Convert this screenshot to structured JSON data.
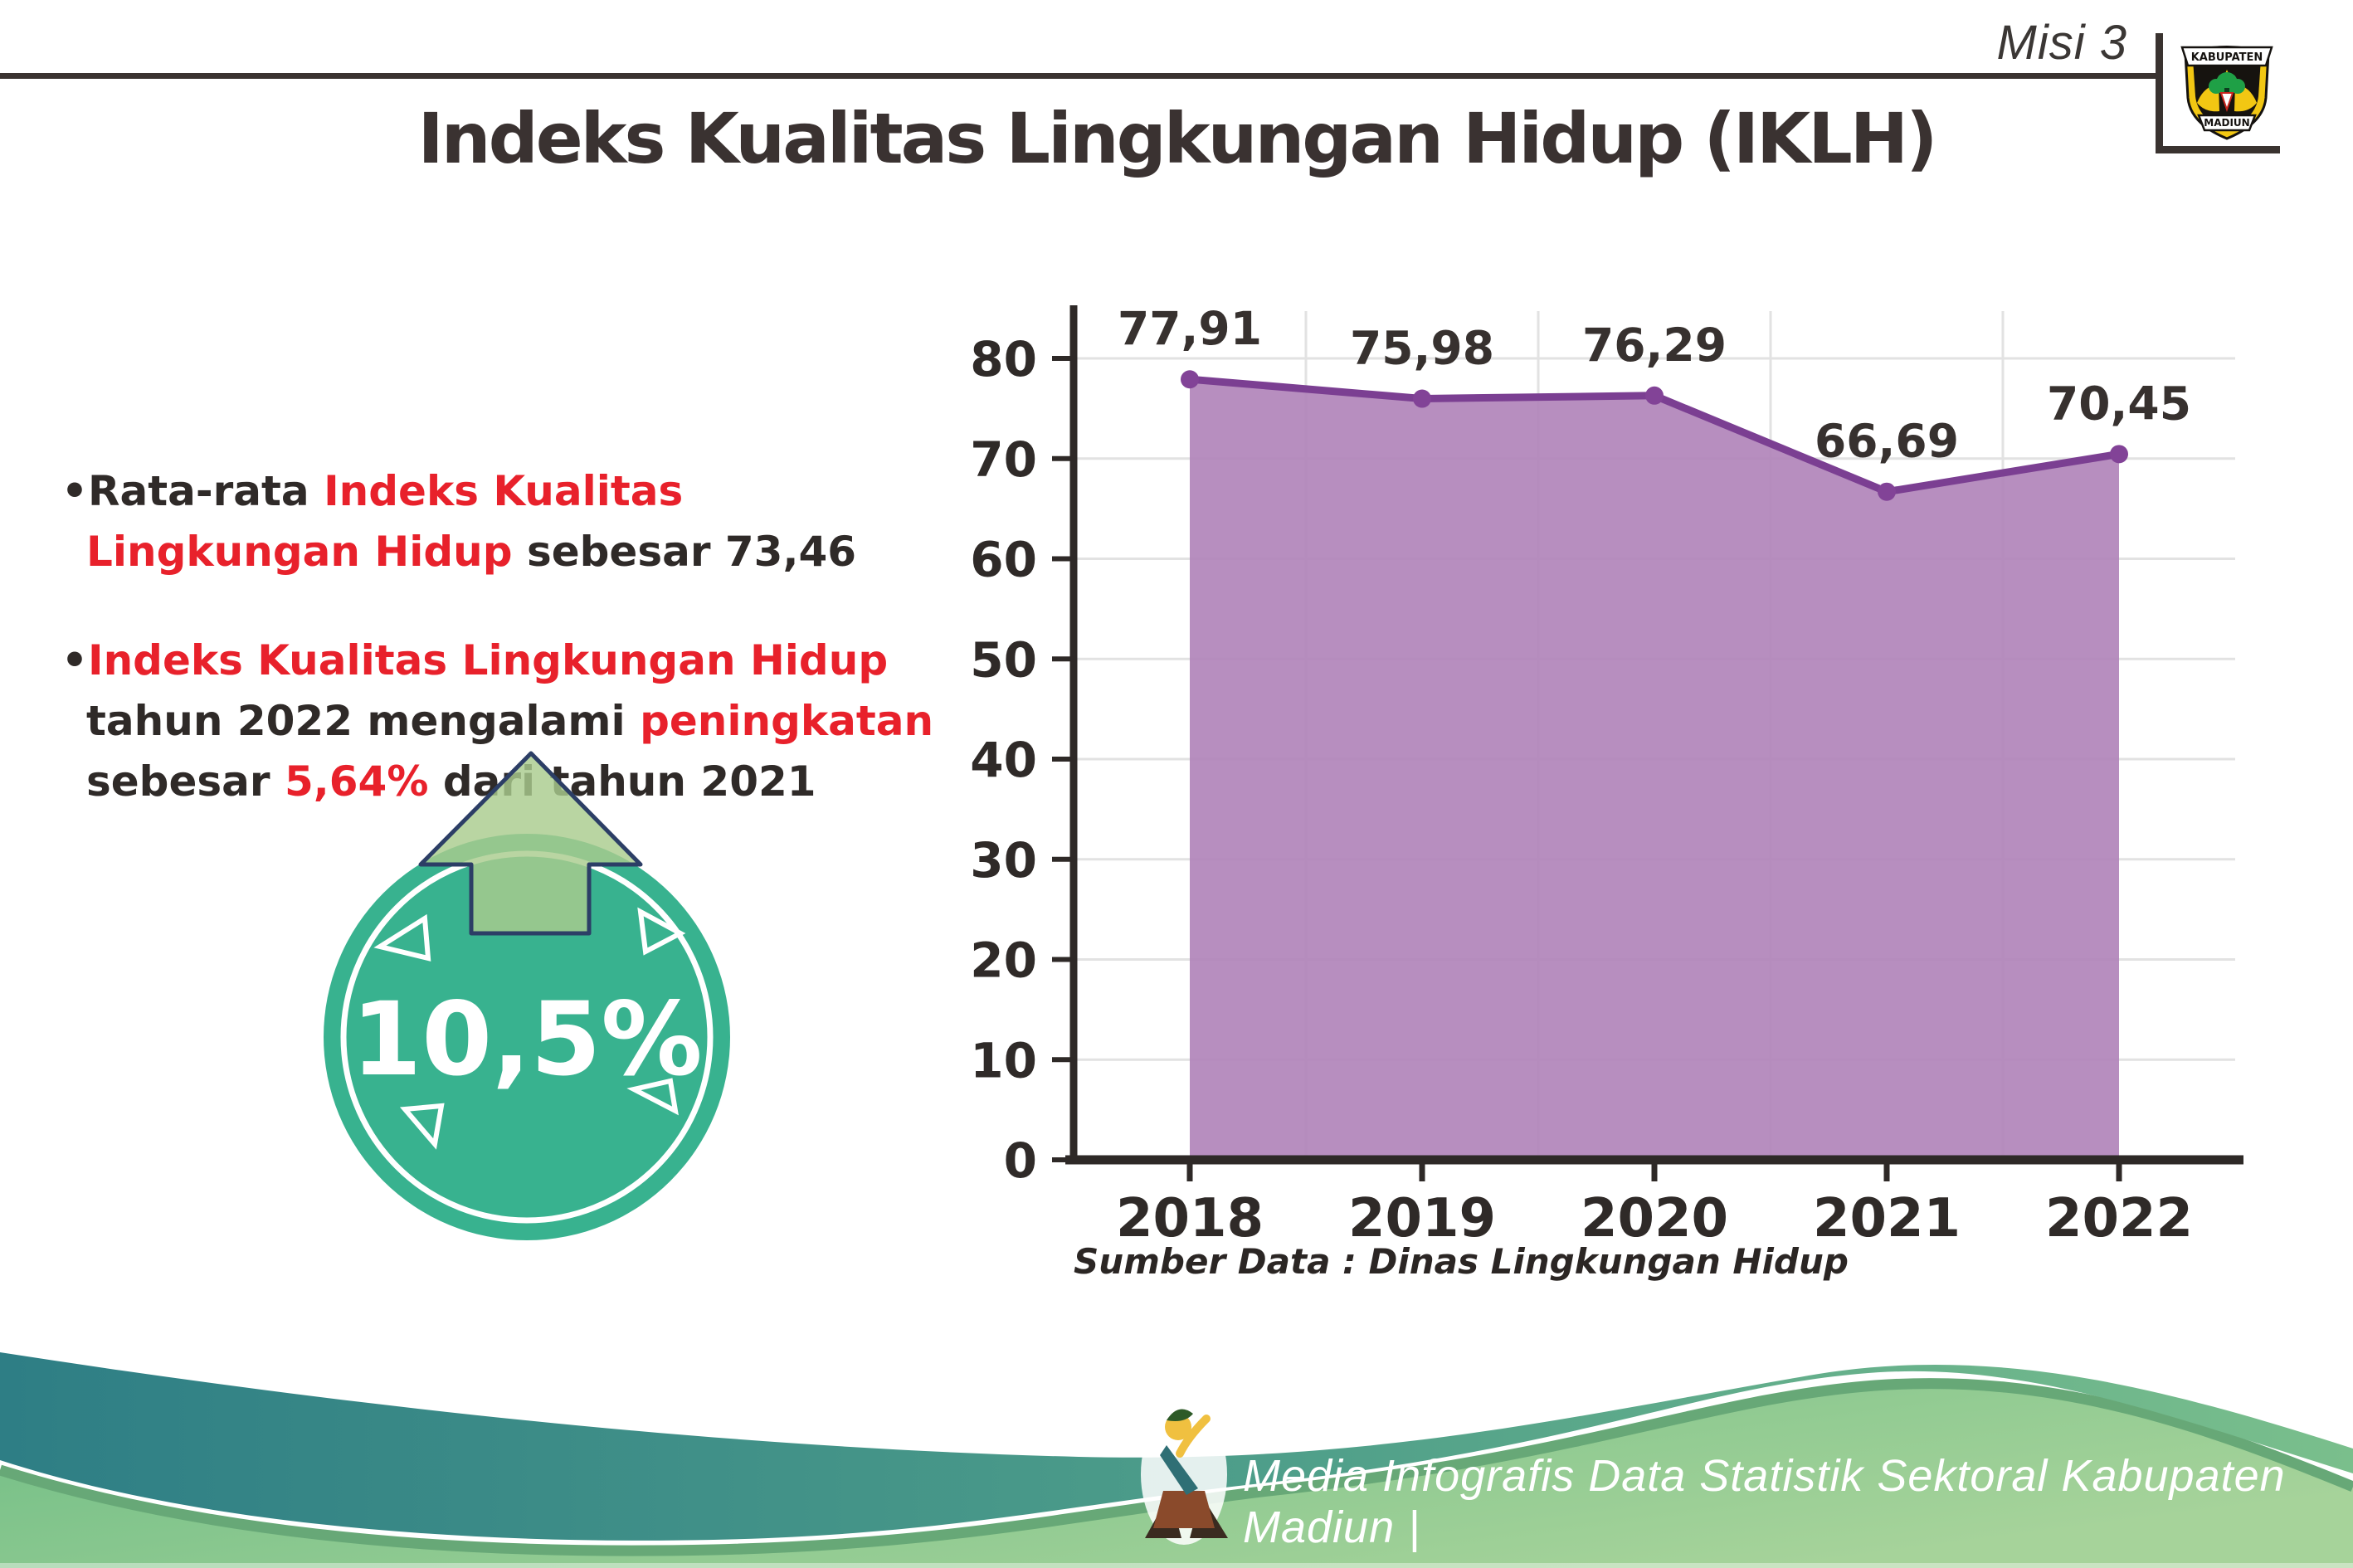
{
  "header": {
    "misi": "Misi 3",
    "title": "Indeks Kualitas Lingkungan Hidup (IKLH)",
    "logo": {
      "top": "KABUPATEN",
      "bottom": "MADIUN"
    }
  },
  "insights": {
    "bullet_char": "•",
    "bullet1": {
      "s1": "Rata-rata ",
      "s2": "Indeks Kualitas Lingkungan Hidup",
      "s3": " sebesar 73,46"
    },
    "bullet2": {
      "s1": "Indeks Kualitas Lingkungan Hidup",
      "s2": " tahun 2022 mengalami ",
      "s3": "peningkatan",
      "s4": " sebesar ",
      "s5": "5,64%",
      "s6": " dari tahun 2021"
    }
  },
  "badge": {
    "value": "10,5%"
  },
  "chart_data": {
    "type": "area",
    "title": "Indeks Kualitas Lingkungan Hidup (IKLH)",
    "categories": [
      "2018",
      "2019",
      "2020",
      "2021",
      "2022"
    ],
    "values": [
      77.91,
      75.98,
      76.29,
      66.69,
      70.45
    ],
    "point_labels": [
      "77,91",
      "75,98",
      "76,29",
      "66,69",
      "70,45"
    ],
    "xlabel": "",
    "ylabel": "",
    "ylim": [
      0,
      80
    ],
    "ytick_step": 10,
    "grid": true,
    "legend": false,
    "source": "Sumber Data : Dinas Lingkungan Hidup",
    "colors": {
      "area": "#b285ba",
      "line": "#7b3f92",
      "point": "#824397",
      "grid": "#e2e2e2",
      "axis": "#2e2927",
      "label": "#37312f"
    }
  },
  "footer": {
    "text": "Media Infografis Data Statistik Sektoral Kabupaten Madiun |"
  },
  "colors": {
    "accent_red": "#e8212b",
    "title_dark": "#3a3231",
    "badge_teal": "#38b28f",
    "arrow_green": "#a9cc8e",
    "arrow_outline_navy": "#2c3e66",
    "wave_teal": "#2e7e85",
    "wave_green": "#7cc489"
  }
}
